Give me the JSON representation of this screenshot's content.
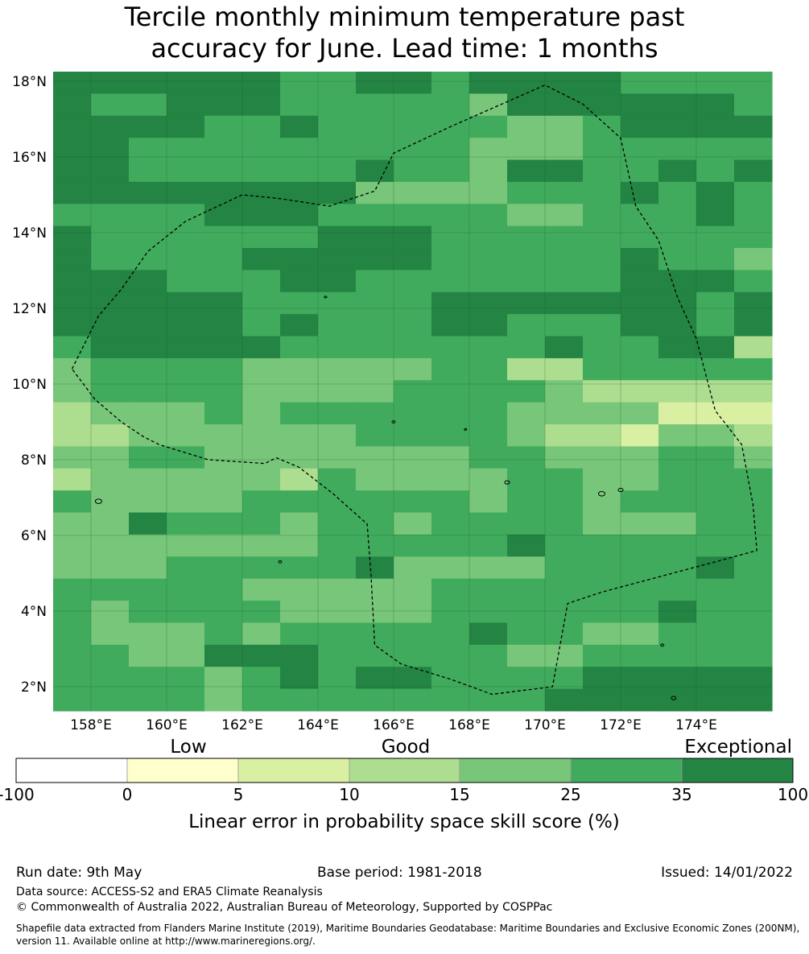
{
  "title_line1": "Tercile monthly minimum temperature past",
  "title_line2": "accuracy for June. Lead time: 1 months",
  "map": {
    "lon_range": [
      157,
      176
    ],
    "lat_range": [
      1.4,
      18.3
    ],
    "lon_ticks": [
      "158°E",
      "160°E",
      "162°E",
      "164°E",
      "166°E",
      "168°E",
      "170°E",
      "172°E",
      "174°E"
    ],
    "lat_ticks": [
      "18°N",
      "16°N",
      "14°N",
      "12°N",
      "10°N",
      "8°N",
      "6°N",
      "4°N",
      "2°N"
    ],
    "grid": true,
    "boundary_style": "dashed",
    "boundary": [
      [
        157.5,
        10.4
      ],
      [
        158.2,
        11.8
      ],
      [
        158.8,
        12.5
      ],
      [
        159.5,
        13.5
      ],
      [
        160.5,
        14.3
      ],
      [
        162,
        15
      ],
      [
        163,
        14.9
      ],
      [
        164.3,
        14.7
      ],
      [
        165.5,
        15.1
      ],
      [
        166,
        16.1
      ],
      [
        167.5,
        16.8
      ],
      [
        170,
        17.9
      ],
      [
        171,
        17.4
      ],
      [
        172,
        16.5
      ],
      [
        172.4,
        14.7
      ],
      [
        173,
        13.8
      ],
      [
        173.5,
        12.3
      ],
      [
        174,
        11.2
      ],
      [
        174.5,
        9.3
      ],
      [
        175.2,
        8.4
      ],
      [
        175.5,
        6.8
      ],
      [
        175.6,
        5.6
      ],
      [
        174.5,
        5.3
      ],
      [
        173,
        4.9
      ],
      [
        171.5,
        4.5
      ],
      [
        170.6,
        4.2
      ],
      [
        170.2,
        2.0
      ],
      [
        168.6,
        1.8
      ],
      [
        167.5,
        2.2
      ],
      [
        166.2,
        2.6
      ],
      [
        165.5,
        3.1
      ],
      [
        165.4,
        5.0
      ],
      [
        165.3,
        6.3
      ],
      [
        164.4,
        7.1
      ],
      [
        163.5,
        7.8
      ],
      [
        162.9,
        8.05
      ],
      [
        162.6,
        7.9
      ],
      [
        161.1,
        8
      ],
      [
        159.8,
        8.4
      ],
      [
        159.4,
        8.6
      ],
      [
        158.8,
        9.0
      ],
      [
        158.1,
        9.6
      ],
      [
        157.5,
        10.4
      ]
    ]
  },
  "colorbar": {
    "words": [
      "Low",
      "Good",
      "Exceptional"
    ],
    "ticks": [
      "-100",
      "0",
      "5",
      "10",
      "15",
      "25",
      "35",
      "100"
    ],
    "colors": [
      "#ffffff",
      "#ffffcc",
      "#d9f0a3",
      "#addd8e",
      "#78c679",
      "#41ab5d",
      "#238443"
    ],
    "label": "Linear error in probability space skill score (%)"
  },
  "footer": {
    "run_date": "Run date: 9th May",
    "base_period": "Base period: 1981-2018",
    "issued": "Issued: 14/01/2022",
    "data_source": "Data source: ACCESS-S2 and ERA5 Climate Reanalysis",
    "copyright": "© Commonwealth of Australia 2022, Australian Bureau of Meteorology, Supported by COSPPac",
    "shapefile_line1": "Shapefile data extracted from Flanders Marine Institute (2019), Maritime Boundaries Geodatabase: Maritime Boundaries and Exclusive Economic Zones (200NM),",
    "shapefile_line2": "version 11. Available online at http://www.marineregions.org/."
  },
  "grid_rows": [
    "5555554455455554444",
    "5445554444435555554",
    "5555445444443345555",
    "5544444444433344444",
    "5544444454435544545",
    "5555555533334445454",
    "4444555444443344454",
    "5444444555444444444",
    "5444455555444445443",
    "5554445544444445554",
    "5555544444555555545",
    "5555545444554445545",
    "4555554444444544552",
    "3444433333442244444",
    "3444433334444322222",
    "2333434444443333111",
    "2233333344443221332",
    "3344333333344333443",
    "2333332433334433444",
    "4333344444434434444",
    "3354443443444433344",
    "3333333444445444444",
    "3334444453333444454",
    "4444433333444444444",
    "4344443333444444544",
    "4333434444454433444",
    "4433555444443344444",
    "4444345455444455555",
    "4444344444444555555"
  ]
}
